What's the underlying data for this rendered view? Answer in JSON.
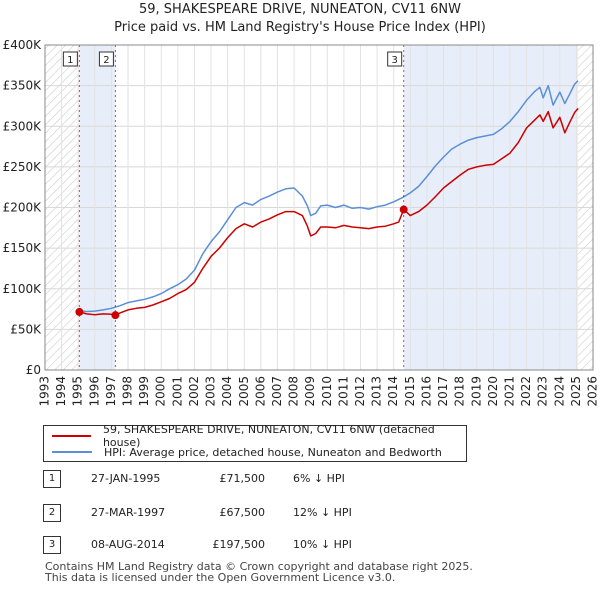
{
  "title_line1": "59, SHAKESPEARE DRIVE, NUNEATON, CV11 6NW",
  "title_line2": "Price paid vs. HM Land Registry's House Price Index (HPI)",
  "chart_data": {
    "type": "line",
    "ylim": [
      0,
      400000
    ],
    "xlim": [
      1993,
      2026
    ],
    "y_ticks": [
      0,
      50000,
      100000,
      150000,
      200000,
      250000,
      300000,
      350000,
      400000
    ],
    "y_tick_labels": [
      "£0",
      "£50K",
      "£100K",
      "£150K",
      "£200K",
      "£250K",
      "£300K",
      "£350K",
      "£400K"
    ],
    "x_ticks": [
      1993,
      1994,
      1995,
      1996,
      1997,
      1998,
      1999,
      2000,
      2001,
      2002,
      2003,
      2004,
      2005,
      2006,
      2007,
      2008,
      2009,
      2010,
      2011,
      2012,
      2013,
      2014,
      2015,
      2016,
      2017,
      2018,
      2019,
      2020,
      2021,
      2022,
      2023,
      2024,
      2025,
      2026
    ],
    "x_tick_labels": [
      "1993",
      "1994",
      "1995",
      "1996",
      "1997",
      "1998",
      "1999",
      "2000",
      "2001",
      "2002",
      "2003",
      "2004",
      "2005",
      "2006",
      "2007",
      "2008",
      "2009",
      "2010",
      "2011",
      "2012",
      "2013",
      "2014",
      "2015",
      "2016",
      "2017",
      "2018",
      "2019",
      "2020",
      "2021",
      "2022",
      "2023",
      "2024",
      "2025",
      "2026"
    ],
    "grid": true,
    "series": [
      {
        "name": "59, SHAKESPEARE DRIVE, NUNEATON, CV11 6NW (detached house)",
        "color": "#cc0000",
        "x": [
          1995.07,
          1995.5,
          1996.0,
          1996.5,
          1997.0,
          1997.24,
          1997.5,
          1998.0,
          1998.5,
          1999.0,
          1999.5,
          2000.0,
          2000.5,
          2001.0,
          2001.5,
          2002.0,
          2002.5,
          2003.0,
          2003.5,
          2004.0,
          2004.5,
          2005.0,
          2005.5,
          2006.0,
          2006.5,
          2007.0,
          2007.5,
          2008.0,
          2008.5,
          2008.8,
          2009.0,
          2009.3,
          2009.6,
          2010.0,
          2010.5,
          2011.0,
          2011.5,
          2012.0,
          2012.5,
          2013.0,
          2013.5,
          2014.0,
          2014.3,
          2014.6,
          2015.0,
          2015.5,
          2016.0,
          2016.5,
          2017.0,
          2017.5,
          2018.0,
          2018.5,
          2019.0,
          2019.5,
          2020.0,
          2020.5,
          2021.0,
          2021.5,
          2022.0,
          2022.5,
          2022.8,
          2023.0,
          2023.3,
          2023.6,
          2024.0,
          2024.3,
          2024.6,
          2024.9,
          2025.1
        ],
        "values": [
          71500,
          69000,
          68000,
          69000,
          68500,
          67500,
          70000,
          74000,
          76000,
          77000,
          80000,
          84000,
          88000,
          94000,
          99000,
          108000,
          125000,
          140000,
          150000,
          163000,
          174000,
          180000,
          176000,
          182000,
          186000,
          191000,
          195000,
          195000,
          190000,
          177000,
          165000,
          168000,
          176000,
          176000,
          175000,
          178000,
          176000,
          175000,
          174000,
          176000,
          177000,
          180000,
          182000,
          197500,
          190000,
          195000,
          203000,
          213000,
          224000,
          232000,
          240000,
          247000,
          250000,
          252000,
          253000,
          260000,
          267000,
          280000,
          298000,
          308000,
          314000,
          306000,
          318000,
          298000,
          311000,
          292000,
          305000,
          317000,
          322000
        ]
      },
      {
        "name": "HPI: Average price, detached house, Nuneaton and Bedworth",
        "color": "#5b8fd6",
        "x": [
          1995.0,
          1995.5,
          1996.0,
          1996.5,
          1997.0,
          1997.5,
          1998.0,
          1998.5,
          1999.0,
          1999.5,
          2000.0,
          2000.5,
          2001.0,
          2001.5,
          2002.0,
          2002.5,
          2003.0,
          2003.5,
          2004.0,
          2004.5,
          2005.0,
          2005.5,
          2006.0,
          2006.5,
          2007.0,
          2007.5,
          2008.0,
          2008.5,
          2008.8,
          2009.0,
          2009.3,
          2009.6,
          2010.0,
          2010.5,
          2011.0,
          2011.5,
          2012.0,
          2012.5,
          2013.0,
          2013.5,
          2014.0,
          2014.5,
          2015.0,
          2015.5,
          2016.0,
          2016.5,
          2017.0,
          2017.5,
          2018.0,
          2018.5,
          2019.0,
          2019.5,
          2020.0,
          2020.5,
          2021.0,
          2021.5,
          2022.0,
          2022.5,
          2022.8,
          2023.0,
          2023.3,
          2023.6,
          2024.0,
          2024.3,
          2024.6,
          2024.9,
          2025.1
        ],
        "values": [
          73000,
          72000,
          72500,
          74000,
          76000,
          79000,
          83000,
          85000,
          87000,
          90000,
          94000,
          100000,
          105000,
          112000,
          123000,
          143000,
          158000,
          170000,
          185000,
          200000,
          206000,
          203000,
          210000,
          214000,
          219000,
          223000,
          224000,
          214000,
          202000,
          190000,
          193000,
          202000,
          203000,
          200000,
          203000,
          199000,
          200000,
          198000,
          201000,
          203000,
          207000,
          212000,
          218000,
          226000,
          238000,
          251000,
          262000,
          272000,
          278000,
          283000,
          286000,
          288000,
          290000,
          297000,
          306000,
          318000,
          332000,
          343000,
          348000,
          335000,
          350000,
          326000,
          342000,
          328000,
          340000,
          352000,
          356000
        ]
      }
    ],
    "sales": [
      {
        "label": "1",
        "x": 1995.07,
        "value": 71500
      },
      {
        "label": "2",
        "x": 1997.24,
        "value": 67500
      },
      {
        "label": "3",
        "x": 2014.6,
        "value": 197500
      }
    ],
    "shaded_ranges": [
      [
        1995.07,
        1997.24
      ],
      [
        2014.6,
        2025.1
      ]
    ],
    "hatched_ranges": [
      [
        1993.0,
        1995.0
      ],
      [
        2025.1,
        2026.0
      ]
    ]
  },
  "legend": {
    "items": [
      {
        "label": "59, SHAKESPEARE DRIVE, NUNEATON, CV11 6NW (detached house)",
        "color": "#cc0000"
      },
      {
        "label": "HPI: Average price, detached house, Nuneaton and Bedworth",
        "color": "#5b8fd6"
      }
    ]
  },
  "transactions": [
    {
      "num": "1",
      "date": "27-JAN-1995",
      "price": "£71,500",
      "hpi": "6% ↓ HPI"
    },
    {
      "num": "2",
      "date": "27-MAR-1997",
      "price": "£67,500",
      "hpi": "12% ↓ HPI"
    },
    {
      "num": "3",
      "date": "08-AUG-2014",
      "price": "£197,500",
      "hpi": "10% ↓ HPI"
    }
  ],
  "footer": {
    "line1": "Contains HM Land Registry data © Crown copyright and database right 2025.",
    "line2": "This data is licensed under the Open Government Licence v3.0."
  }
}
